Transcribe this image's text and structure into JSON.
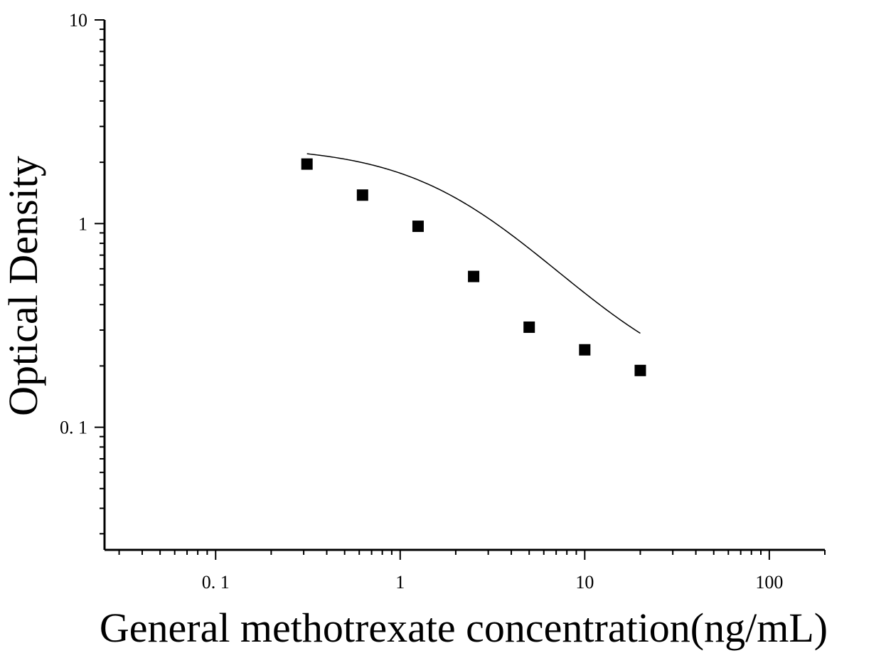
{
  "chart_data": {
    "type": "scatter",
    "xscale": "log",
    "yscale": "log",
    "xlim": [
      0.025,
      200
    ],
    "ylim": [
      0.025,
      10
    ],
    "xlabel": "General methotrexate concentration(ng/mL)",
    "ylabel": "Optical Density",
    "x_ticks": [
      {
        "value": 0.1,
        "label": "0. 1"
      },
      {
        "value": 1,
        "label": "1"
      },
      {
        "value": 10,
        "label": "10"
      },
      {
        "value": 100,
        "label": "100"
      }
    ],
    "y_ticks": [
      {
        "value": 10,
        "label": "10"
      },
      {
        "value": 1,
        "label": "1"
      },
      {
        "value": 0.1,
        "label": "0. 1"
      }
    ],
    "grid": false,
    "legend": "none",
    "series": [
      {
        "x": [
          0.3125,
          0.625,
          1.25,
          2.5,
          5,
          10,
          20
        ],
        "y": [
          1.96,
          1.38,
          0.97,
          0.55,
          0.31,
          0.24,
          0.19
        ]
      }
    ],
    "fit_curve": {
      "model": "4PL",
      "A": 2.4,
      "B": 1.2,
      "C": 2.2,
      "D": 0.14,
      "x_range": [
        0.3125,
        20
      ]
    },
    "colors": {
      "marker": "#000000",
      "line": "#000000",
      "axis": "#000000"
    }
  }
}
